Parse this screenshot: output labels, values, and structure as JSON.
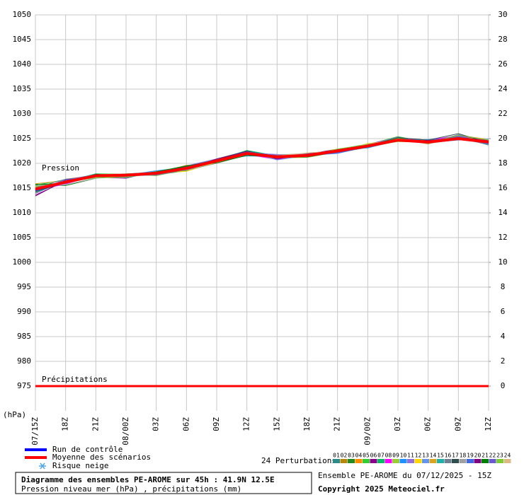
{
  "chart_data": {
    "type": "line",
    "categories": [
      "07/15Z",
      "18Z",
      "21Z",
      "08/00Z",
      "03Z",
      "06Z",
      "09Z",
      "12Z",
      "15Z",
      "18Z",
      "21Z",
      "09/00Z",
      "03Z",
      "06Z",
      "09Z",
      "12Z"
    ],
    "ylim": [
      975,
      1050
    ],
    "yticks": [
      975,
      980,
      985,
      990,
      995,
      1000,
      1005,
      1010,
      1015,
      1020,
      1025,
      1030,
      1035,
      1040,
      1045,
      1050
    ],
    "y2lim": [
      0,
      30
    ],
    "y2ticks": [
      0,
      2,
      4,
      6,
      8,
      10,
      12,
      14,
      16,
      18,
      20,
      22,
      24,
      26,
      28,
      30
    ],
    "grid": true,
    "y_label": "(hPa)",
    "pressure_label": "Pression",
    "perturbations_label": "24 Perturbations",
    "snow_label": "Risque neige",
    "series": [
      {
        "name": "01",
        "color": "#2e8b8b",
        "values": [
          1015.3,
          1016.0,
          1017.3,
          1017.4,
          1017.9,
          1018.7,
          1020.8,
          1022.3,
          1021.0,
          1021.5,
          1022.8,
          1023.9,
          1025.0,
          1024.0,
          1025.2,
          1024.0
        ]
      },
      {
        "name": "02",
        "color": "#b8860b",
        "values": [
          1014.2,
          1016.5,
          1017.8,
          1017.2,
          1018.3,
          1019.3,
          1020.2,
          1021.7,
          1021.6,
          1021.9,
          1022.2,
          1023.2,
          1024.5,
          1024.6,
          1025.5,
          1024.6
        ]
      },
      {
        "name": "03",
        "color": "#228b22",
        "values": [
          1015.8,
          1015.5,
          1017.0,
          1017.9,
          1017.7,
          1018.5,
          1020.9,
          1022.5,
          1021.4,
          1021.3,
          1022.6,
          1023.7,
          1025.2,
          1024.1,
          1024.8,
          1024.1
        ]
      },
      {
        "name": "04",
        "color": "#ff8c00",
        "values": [
          1014.0,
          1016.8,
          1017.6,
          1017.5,
          1018.1,
          1019.6,
          1020.0,
          1021.9,
          1020.9,
          1021.8,
          1022.9,
          1023.4,
          1024.9,
          1024.5,
          1025.7,
          1024.8
        ]
      },
      {
        "name": "05",
        "color": "#32cd32",
        "values": [
          1015.0,
          1016.1,
          1017.9,
          1017.8,
          1017.6,
          1018.9,
          1020.6,
          1022.2,
          1021.7,
          1021.4,
          1022.4,
          1023.8,
          1025.4,
          1024.2,
          1025.1,
          1023.8
        ]
      },
      {
        "name": "06",
        "color": "#8b008b",
        "values": [
          1013.6,
          1016.4,
          1017.2,
          1017.0,
          1018.4,
          1019.1,
          1020.3,
          1021.6,
          1021.2,
          1022.0,
          1022.1,
          1023.6,
          1024.6,
          1024.4,
          1024.9,
          1024.5
        ]
      },
      {
        "name": "07",
        "color": "#00c060",
        "values": [
          1015.6,
          1016.7,
          1017.4,
          1017.7,
          1017.8,
          1018.6,
          1020.7,
          1022.6,
          1021.5,
          1021.6,
          1022.7,
          1023.3,
          1024.8,
          1024.0,
          1025.3,
          1024.2
        ]
      },
      {
        "name": "08",
        "color": "#ff00ff",
        "values": [
          1014.6,
          1015.8,
          1017.7,
          1017.3,
          1018.2,
          1019.4,
          1020.4,
          1021.8,
          1020.8,
          1021.7,
          1022.5,
          1023.9,
          1025.1,
          1024.7,
          1025.6,
          1024.7
        ]
      },
      {
        "name": "09",
        "color": "#9acd32",
        "values": [
          1015.2,
          1016.3,
          1017.1,
          1017.9,
          1017.5,
          1018.8,
          1020.1,
          1022.4,
          1021.1,
          1021.2,
          1022.3,
          1023.5,
          1024.4,
          1024.3,
          1025.4,
          1024.4
        ]
      },
      {
        "name": "10",
        "color": "#1e90ff",
        "values": [
          1014.4,
          1016.0,
          1017.5,
          1017.6,
          1018.5,
          1019.2,
          1020.6,
          1021.5,
          1021.4,
          1021.9,
          1022.8,
          1023.1,
          1024.7,
          1024.8,
          1025.0,
          1023.9
        ]
      },
      {
        "name": "11",
        "color": "#9370db",
        "values": [
          1013.9,
          1016.6,
          1017.8,
          1017.4,
          1017.7,
          1019.5,
          1020.9,
          1022.1,
          1021.8,
          1021.5,
          1022.6,
          1023.7,
          1025.3,
          1024.1,
          1025.8,
          1024.6
        ]
      },
      {
        "name": "12",
        "color": "#ffd700",
        "values": [
          1015.4,
          1016.2,
          1017.3,
          1017.2,
          1018.0,
          1018.4,
          1020.2,
          1022.0,
          1021.3,
          1022.1,
          1022.4,
          1024.0,
          1024.6,
          1024.6,
          1025.2,
          1024.3
        ]
      },
      {
        "name": "13",
        "color": "#6495ed",
        "values": [
          1014.7,
          1015.9,
          1017.6,
          1017.8,
          1018.3,
          1019.0,
          1020.5,
          1022.3,
          1020.7,
          1021.6,
          1022.0,
          1023.4,
          1024.9,
          1024.2,
          1024.7,
          1024.9
        ]
      },
      {
        "name": "14",
        "color": "#daa520",
        "values": [
          1015.9,
          1016.5,
          1017.2,
          1017.5,
          1017.9,
          1018.9,
          1020.3,
          1021.8,
          1021.5,
          1021.4,
          1022.9,
          1023.6,
          1025.0,
          1023.9,
          1025.5,
          1024.1
        ]
      },
      {
        "name": "15",
        "color": "#20b2aa",
        "values": [
          1014.1,
          1016.3,
          1017.9,
          1017.1,
          1018.2,
          1019.3,
          1020.8,
          1022.2,
          1021.0,
          1021.8,
          1022.5,
          1023.2,
          1024.8,
          1024.5,
          1025.1,
          1024.5
        ]
      },
      {
        "name": "16",
        "color": "#708090",
        "values": [
          1015.1,
          1016.8,
          1017.4,
          1017.6,
          1017.6,
          1018.7,
          1020.4,
          1021.9,
          1021.6,
          1021.7,
          1022.7,
          1023.8,
          1024.5,
          1024.3,
          1025.3,
          1023.7
        ]
      },
      {
        "name": "17",
        "color": "#2f4f4f",
        "values": [
          1014.3,
          1016.1,
          1017.7,
          1017.9,
          1018.1,
          1019.4,
          1020.7,
          1022.5,
          1021.2,
          1021.3,
          1022.3,
          1023.5,
          1025.2,
          1024.7,
          1026.0,
          1024.2
        ]
      },
      {
        "name": "18",
        "color": "#a0a0a0",
        "values": [
          1015.5,
          1015.7,
          1017.0,
          1017.3,
          1018.4,
          1018.6,
          1020.0,
          1021.7,
          1021.7,
          1022.0,
          1022.6,
          1023.9,
          1024.7,
          1024.0,
          1024.9,
          1024.8
        ]
      },
      {
        "name": "19",
        "color": "#4169e1",
        "values": [
          1014.9,
          1016.4,
          1017.5,
          1017.7,
          1017.8,
          1019.1,
          1020.6,
          1022.1,
          1021.4,
          1021.6,
          1022.1,
          1023.3,
          1024.9,
          1024.4,
          1025.6,
          1024.0
        ]
      },
      {
        "name": "20",
        "color": "#800080",
        "values": [
          1013.4,
          1016.6,
          1017.3,
          1017.4,
          1018.0,
          1018.8,
          1020.9,
          1022.4,
          1020.9,
          1021.9,
          1022.8,
          1023.7,
          1024.6,
          1024.6,
          1025.2,
          1024.6
        ]
      },
      {
        "name": "21",
        "color": "#008000",
        "values": [
          1015.7,
          1016.0,
          1017.8,
          1017.5,
          1018.3,
          1019.5,
          1020.1,
          1021.6,
          1021.3,
          1021.5,
          1022.4,
          1023.6,
          1025.1,
          1024.2,
          1024.8,
          1024.4
        ]
      },
      {
        "name": "22",
        "color": "#6a5acd",
        "values": [
          1014.5,
          1016.7,
          1017.6,
          1017.8,
          1017.7,
          1019.2,
          1020.5,
          1022.3,
          1021.6,
          1021.8,
          1022.6,
          1023.4,
          1024.5,
          1024.5,
          1025.4,
          1024.0
        ]
      },
      {
        "name": "23",
        "color": "#7ccd32",
        "values": [
          1015.0,
          1016.2,
          1017.1,
          1017.2,
          1018.2,
          1018.9,
          1020.7,
          1022.0,
          1021.1,
          1021.4,
          1022.9,
          1023.8,
          1024.8,
          1024.1,
          1025.7,
          1024.7
        ]
      },
      {
        "name": "24",
        "color": "#deb887",
        "values": [
          1014.8,
          1016.4,
          1017.7,
          1017.9,
          1017.9,
          1019.0,
          1020.3,
          1021.9,
          1021.5,
          1022.1,
          1022.5,
          1023.5,
          1025.0,
          1024.3,
          1025.0,
          1024.3
        ]
      },
      {
        "name": "Run de contrôle",
        "color": "#0000ff",
        "values": [
          1014.6,
          1016.1,
          1017.6,
          1017.5,
          1018.1,
          1018.9,
          1020.6,
          1022.1,
          1021.2,
          1021.7,
          1022.6,
          1023.6,
          1024.7,
          1024.2,
          1025.1,
          1024.2
        ]
      },
      {
        "name": "Moyenne des scénarios",
        "color": "#ff0000",
        "values": [
          1014.8,
          1016.2,
          1017.5,
          1017.6,
          1018.0,
          1019.0,
          1020.5,
          1022.0,
          1021.3,
          1021.6,
          1022.5,
          1023.5,
          1024.7,
          1024.3,
          1025.0,
          1024.3
        ]
      },
      {
        "name": "Précipitations",
        "color": "#ff0000",
        "axis": "y2",
        "values": [
          0,
          0,
          0,
          0,
          0,
          0,
          0,
          0,
          0,
          0,
          0,
          0,
          0,
          0,
          0,
          0
        ]
      }
    ],
    "footer": {
      "title": "Diagramme des ensembles PE-AROME sur 45h : 41.9N 12.5E",
      "subtitle": "Pression niveau mer (hPa) , précipitations (mm)",
      "ensemble": "Ensemble PE-AROME du 07/12/2025 - 15Z",
      "copyright": "Copyright 2025 Meteociel.fr"
    }
  }
}
